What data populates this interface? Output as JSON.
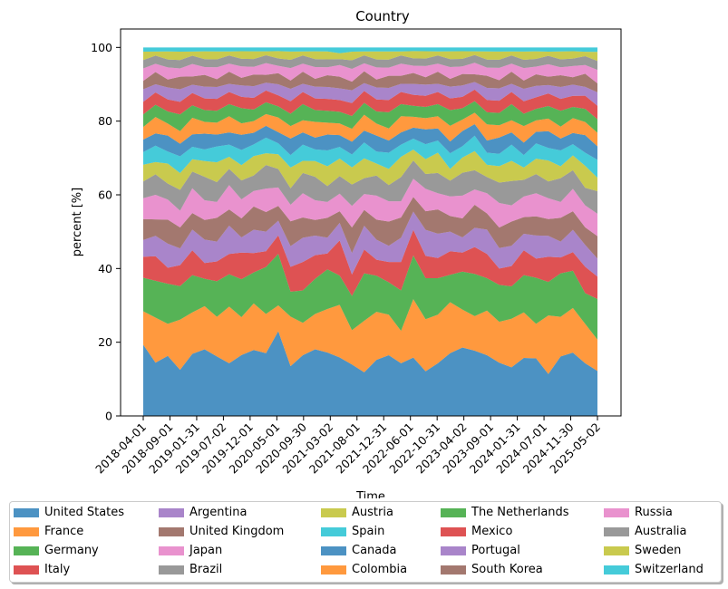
{
  "chart_data": {
    "type": "area",
    "stacking": "percent",
    "title": "Country",
    "xlabel": "Time",
    "ylabel": "percent [%]",
    "ylim": [
      0,
      105
    ],
    "yticks": [
      0,
      20,
      40,
      60,
      80,
      100
    ],
    "xticks": [
      "2018-04-01",
      "2018-09-01",
      "2019-01-31",
      "2019-07-02",
      "2019-12-01",
      "2020-05-01",
      "2020-09-30",
      "2021-03-02",
      "2021-08-01",
      "2021-12-31",
      "2022-06-01",
      "2022-10-31",
      "2023-04-02",
      "2023-09-01",
      "2024-01-31",
      "2024-07-01",
      "2024-11-30",
      "2025-05-02"
    ],
    "legend_position": "bottom-center",
    "legend_columns": 5,
    "grid": false,
    "series": [
      {
        "name": "United States",
        "color": "#1f77b4",
        "values": [
          17,
          13,
          15,
          11,
          15,
          17,
          15,
          13,
          16,
          17,
          16,
          23,
          12,
          15,
          17,
          16,
          10,
          12,
          11,
          14,
          15,
          13,
          16,
          12,
          13,
          16,
          18,
          17,
          15,
          13,
          12,
          14,
          15,
          10,
          15,
          17,
          12,
          10
        ]
      },
      {
        "name": "France",
        "color": "#ff7f0e",
        "values": [
          8,
          11,
          8,
          12,
          10,
          11,
          10,
          14,
          10,
          12,
          10,
          7,
          12,
          8,
          9,
          11,
          9,
          8,
          13,
          12,
          10,
          8,
          16,
          14,
          12,
          13,
          10,
          9,
          11,
          10,
          12,
          11,
          9,
          14,
          10,
          12,
          9,
          7
        ]
      },
      {
        "name": "Germany",
        "color": "#2ca02c",
        "values": [
          8,
          9,
          10,
          8,
          9,
          7,
          9,
          8,
          10,
          8,
          12,
          14,
          6,
          8,
          9,
          10,
          5,
          8,
          12,
          9,
          8,
          10,
          12,
          11,
          9,
          7,
          10,
          11,
          8,
          9,
          8,
          9,
          12,
          8,
          11,
          10,
          7,
          9
        ]
      },
      {
        "name": "Italy",
        "color": "#d62728",
        "values": [
          5,
          6,
          4,
          5,
          6,
          4,
          5,
          5,
          7,
          5,
          4,
          5,
          6,
          7,
          6,
          4,
          6,
          5,
          6,
          4,
          5,
          7,
          7,
          6,
          5,
          6,
          5,
          7,
          6,
          4,
          5,
          6,
          5,
          6,
          4,
          5,
          6,
          5
        ]
      },
      {
        "name": "Argentina",
        "color": "#9467bd",
        "values": [
          4,
          5,
          6,
          4,
          5,
          6,
          5,
          7,
          4,
          6,
          5,
          4,
          5,
          6,
          5,
          4,
          3,
          5,
          6,
          5,
          4,
          6,
          5,
          7,
          6,
          5,
          4,
          5,
          6,
          5,
          5,
          4,
          6,
          5,
          4,
          6,
          5,
          4
        ]
      },
      {
        "name": "United Kingdom",
        "color": "#8c564b",
        "values": [
          5,
          4,
          6,
          5,
          4,
          5,
          6,
          4,
          5,
          6,
          5,
          4,
          6,
          5,
          4,
          5,
          2,
          6,
          4,
          5,
          6,
          5,
          4,
          5,
          6,
          4,
          5,
          6,
          4,
          5,
          6,
          4,
          5,
          4,
          6,
          5,
          4,
          5
        ]
      },
      {
        "name": "Japan",
        "color": "#e377c2",
        "values": [
          5,
          6,
          5,
          4,
          6,
          5,
          4,
          6,
          5,
          4,
          6,
          5,
          4,
          6,
          5,
          4,
          3,
          5,
          4,
          6,
          5,
          4,
          5,
          6,
          4,
          5,
          6,
          4,
          5,
          6,
          4,
          5,
          6,
          5,
          4,
          6,
          5,
          5
        ]
      },
      {
        "name": "Brazil",
        "color": "#7f7f7f",
        "values": [
          4,
          5,
          4,
          5,
          4,
          6,
          5,
          4,
          5,
          4,
          6,
          5,
          4,
          5,
          6,
          4,
          3,
          5,
          4,
          5,
          4,
          6,
          5,
          4,
          5,
          4,
          6,
          5,
          4,
          5,
          6,
          4,
          5,
          4,
          6,
          5,
          4,
          5
        ]
      },
      {
        "name": "Austria",
        "color": "#bcbd22",
        "values": [
          4,
          3,
          5,
          4,
          3,
          4,
          5,
          3,
          4,
          5,
          3,
          4,
          5,
          3,
          4,
          5,
          3,
          4,
          5,
          3,
          4,
          5,
          3,
          4,
          5,
          3,
          4,
          5,
          3,
          4,
          5,
          3,
          4,
          5,
          3,
          4,
          5,
          3
        ]
      },
      {
        "name": "Spain",
        "color": "#17becf",
        "values": [
          3,
          4,
          3,
          4,
          3,
          3,
          4,
          3,
          4,
          3,
          4,
          3,
          3,
          4,
          3,
          4,
          2,
          3,
          4,
          3,
          4,
          3,
          3,
          4,
          3,
          4,
          3,
          4,
          3,
          3,
          4,
          3,
          4,
          3,
          4,
          3,
          3,
          4
        ]
      },
      {
        "name": "Canada",
        "color": "#1f77b4",
        "values": [
          3,
          3,
          4,
          3,
          3,
          4,
          3,
          3,
          4,
          3,
          3,
          3,
          4,
          3,
          3,
          4,
          2,
          3,
          3,
          4,
          3,
          3,
          3,
          4,
          3,
          3,
          4,
          3,
          3,
          4,
          3,
          3,
          3,
          4,
          3,
          3,
          4,
          3
        ]
      },
      {
        "name": "Colombia",
        "color": "#ff7f0e",
        "values": [
          3,
          4,
          3,
          3,
          4,
          3,
          3,
          4,
          3,
          3,
          3,
          4,
          3,
          3,
          4,
          3,
          2,
          3,
          4,
          3,
          3,
          4,
          3,
          3,
          3,
          4,
          3,
          3,
          4,
          3,
          3,
          4,
          3,
          3,
          3,
          4,
          3,
          3
        ]
      },
      {
        "name": "The Netherlands",
        "color": "#2ca02c",
        "values": [
          3,
          3,
          3,
          4,
          3,
          3,
          3,
          3,
          4,
          3,
          3,
          3,
          3,
          4,
          3,
          3,
          2,
          3,
          3,
          3,
          4,
          3,
          3,
          3,
          3,
          4,
          3,
          3,
          3,
          3,
          4,
          3,
          3,
          3,
          4,
          3,
          3,
          3
        ]
      },
      {
        "name": "Mexico",
        "color": "#d62728",
        "values": [
          3,
          3,
          3,
          3,
          3,
          3,
          3,
          3,
          3,
          3,
          3,
          3,
          3,
          3,
          3,
          3,
          2,
          3,
          3,
          3,
          3,
          3,
          3,
          3,
          3,
          3,
          3,
          3,
          3,
          3,
          3,
          3,
          3,
          3,
          3,
          3,
          3,
          3
        ]
      },
      {
        "name": "Portugal",
        "color": "#9467bd",
        "values": [
          3,
          2,
          3,
          3,
          2,
          3,
          3,
          2,
          3,
          3,
          2,
          3,
          3,
          2,
          3,
          3,
          2,
          3,
          2,
          3,
          3,
          2,
          3,
          3,
          2,
          3,
          3,
          2,
          3,
          3,
          2,
          3,
          3,
          2,
          3,
          3,
          2,
          3
        ]
      },
      {
        "name": "South Korea",
        "color": "#8c564b",
        "values": [
          2,
          3,
          2,
          3,
          2,
          3,
          2,
          3,
          2,
          3,
          2,
          3,
          2,
          3,
          2,
          3,
          2,
          2,
          3,
          2,
          3,
          2,
          3,
          2,
          3,
          2,
          3,
          2,
          3,
          2,
          3,
          2,
          3,
          2,
          3,
          2,
          3,
          2
        ]
      },
      {
        "name": "Russia",
        "color": "#e377c2",
        "values": [
          3,
          2,
          3,
          2,
          3,
          2,
          3,
          2,
          3,
          2,
          3,
          2,
          3,
          2,
          3,
          2,
          2,
          3,
          2,
          3,
          2,
          3,
          2,
          3,
          2,
          3,
          2,
          3,
          2,
          3,
          2,
          3,
          2,
          3,
          2,
          3,
          2,
          3
        ]
      },
      {
        "name": "Australia",
        "color": "#7f7f7f",
        "values": [
          2,
          2,
          2,
          2,
          2,
          2,
          2,
          2,
          2,
          2,
          2,
          2,
          2,
          2,
          2,
          2,
          1,
          2,
          2,
          2,
          2,
          2,
          2,
          2,
          2,
          2,
          2,
          2,
          2,
          2,
          2,
          2,
          2,
          2,
          2,
          2,
          2,
          2
        ]
      },
      {
        "name": "Sweden",
        "color": "#bcbd22",
        "values": [
          2,
          1,
          2,
          2,
          1,
          2,
          2,
          1,
          2,
          2,
          1,
          2,
          2,
          1,
          2,
          2,
          1,
          2,
          1,
          2,
          2,
          1,
          2,
          2,
          1,
          2,
          2,
          1,
          2,
          2,
          1,
          2,
          2,
          1,
          2,
          2,
          1,
          2
        ]
      },
      {
        "name": "Switzerland",
        "color": "#17becf",
        "values": [
          1,
          1,
          1,
          1,
          1,
          1,
          1,
          1,
          1,
          1,
          1,
          1,
          1,
          1,
          1,
          1,
          1,
          1,
          1,
          1,
          1,
          1,
          1,
          1,
          1,
          1,
          1,
          1,
          1,
          1,
          1,
          1,
          1,
          1,
          1,
          1,
          1,
          1
        ]
      }
    ]
  }
}
